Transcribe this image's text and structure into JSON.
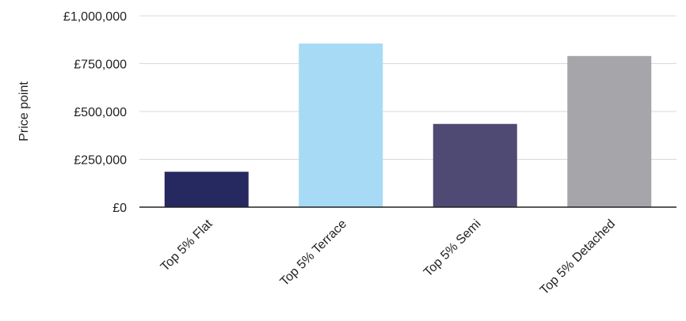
{
  "chart_data": {
    "type": "bar",
    "title": "",
    "xlabel": "",
    "ylabel": "Price point",
    "categories": [
      "Top 5% Flat",
      "Top 5% Terrace",
      "Top 5% Semi",
      "Top 5% Detached"
    ],
    "values": [
      185000,
      855000,
      435000,
      790000
    ],
    "colors": [
      "#262860",
      "#a6daf5",
      "#4e4a73",
      "#a6a6aa"
    ],
    "ylim": [
      0,
      1000000
    ],
    "yticks": [
      0,
      250000,
      500000,
      750000,
      1000000
    ],
    "ytick_labels": [
      "£0",
      "£250,000",
      "£500,000",
      "£750,000",
      "£1,000,000"
    ],
    "grid": true,
    "legend": "none"
  }
}
